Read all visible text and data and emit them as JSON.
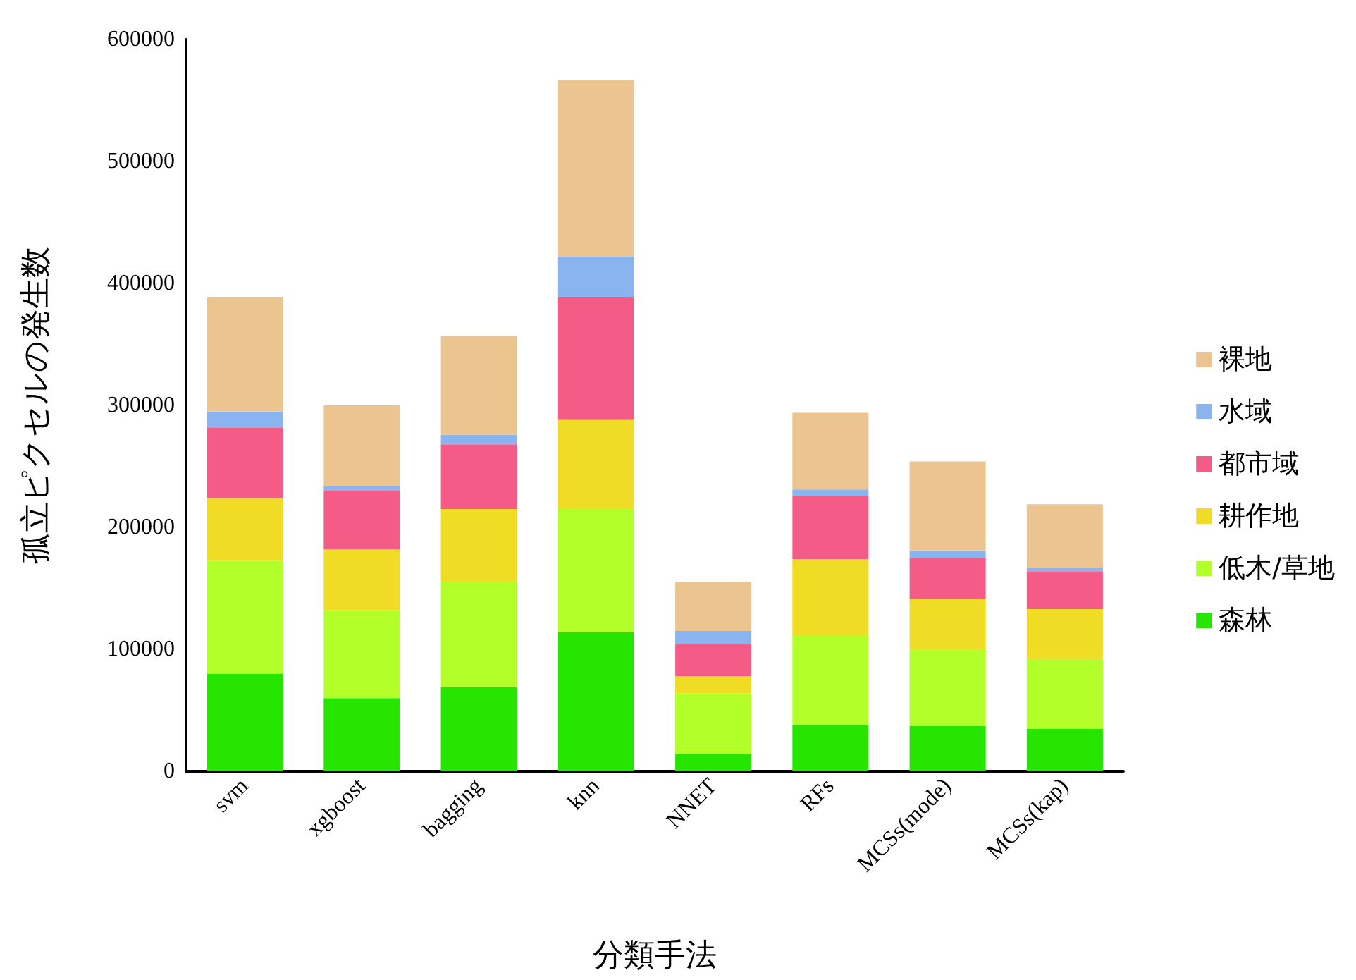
{
  "chart_data": {
    "type": "bar",
    "stacked": true,
    "xlabel": "分類手法",
    "ylabel": "孤立ピクセルの発生数",
    "categories": [
      "svm",
      "xgboost",
      "bagging",
      "knn",
      "NNET",
      "RFs",
      "MCSs(mode)",
      "MCSs(kap)"
    ],
    "series": [
      {
        "name": "森林",
        "color": "#26e600",
        "values": [
          80000,
          60000,
          69000,
          114000,
          14000,
          38000,
          37000,
          35000
        ]
      },
      {
        "name": "低木/草地",
        "color": "#b2ff2a",
        "values": [
          93000,
          72000,
          86000,
          101000,
          50000,
          73000,
          63000,
          57000
        ]
      },
      {
        "name": "耕作地",
        "color": "#f0dc24",
        "values": [
          51000,
          50000,
          60000,
          73000,
          14000,
          63000,
          41000,
          41000
        ]
      },
      {
        "name": "都市域",
        "color": "#f45c87",
        "values": [
          58000,
          48000,
          53000,
          101000,
          26000,
          52000,
          34000,
          31000
        ]
      },
      {
        "name": "水域",
        "color": "#8ab4f0",
        "values": [
          13000,
          4000,
          8000,
          33000,
          11000,
          5000,
          6000,
          3000
        ]
      },
      {
        "name": "裸地",
        "color": "#ecc490",
        "values": [
          94000,
          66000,
          81000,
          145000,
          40000,
          63000,
          73000,
          52000
        ]
      }
    ],
    "ylim": [
      0,
      600000
    ],
    "yticks": [
      0,
      100000,
      200000,
      300000,
      400000,
      500000,
      600000
    ],
    "grid": false,
    "legend": "right"
  }
}
